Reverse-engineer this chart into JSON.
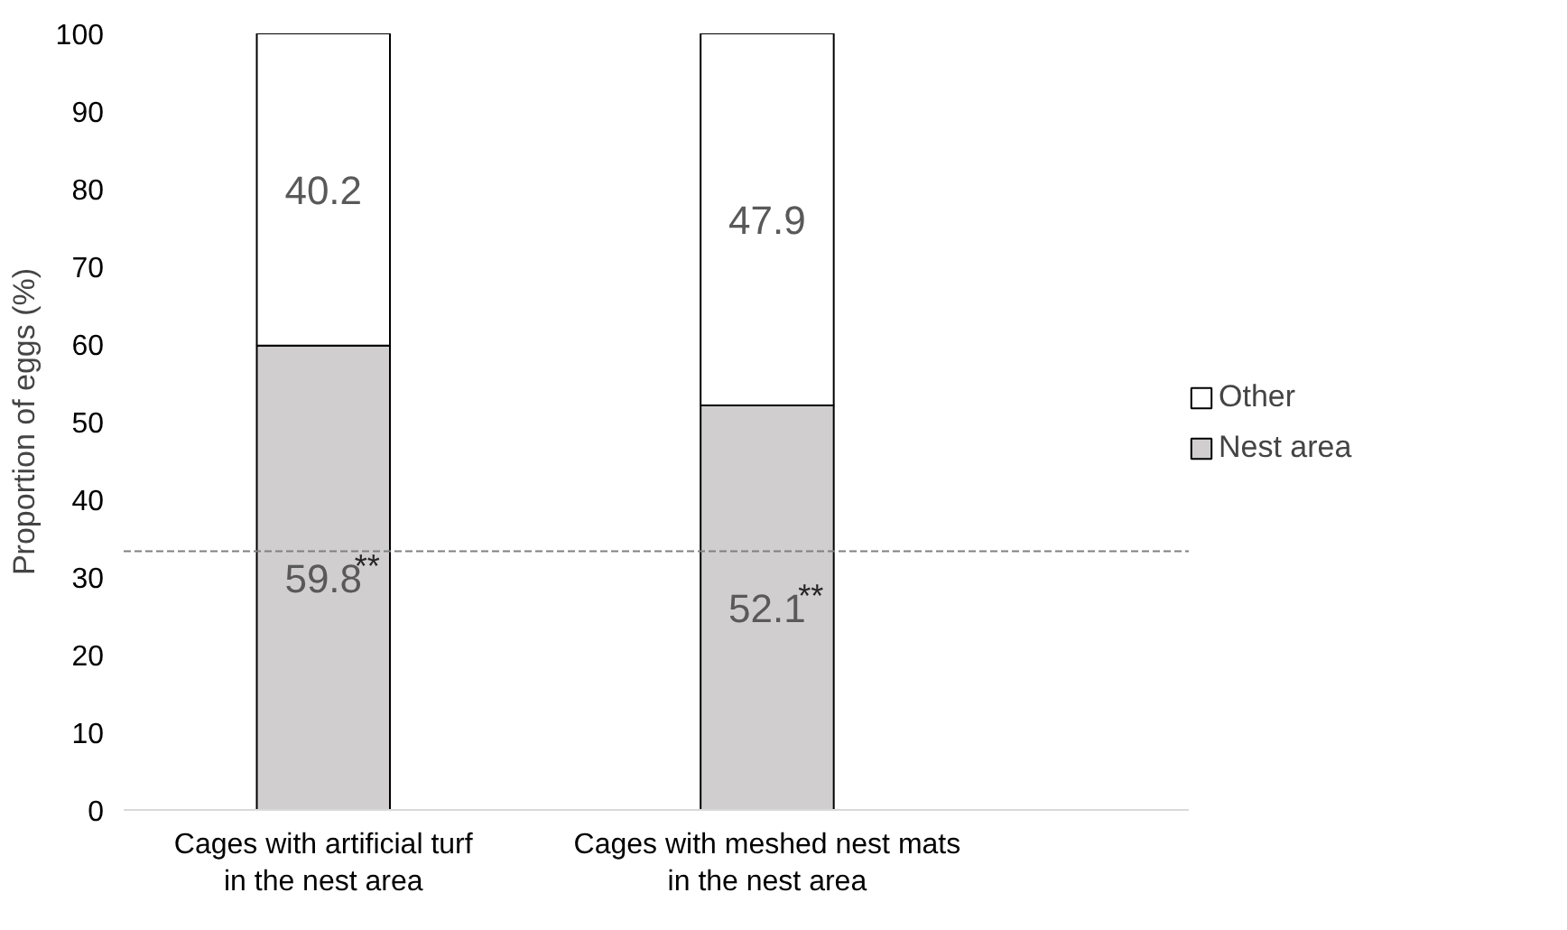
{
  "chart_data": {
    "type": "bar",
    "stacked": true,
    "ylabel": "Proportion of eggs (%)",
    "categories": [
      "Cages with artificial turf\nin the nest area",
      "Cages with meshed nest mats\nin the nest area"
    ],
    "series": [
      {
        "name": "Nest area",
        "color": "#d0cece",
        "values": [
          59.8,
          52.1
        ]
      },
      {
        "name": "Other",
        "color": "#ffffff",
        "values": [
          40.2,
          47.9
        ]
      }
    ],
    "data_labels": true,
    "ylim": [
      0,
      100
    ],
    "yticks": [
      0,
      10,
      20,
      30,
      40,
      50,
      60,
      70,
      80,
      90,
      100
    ],
    "ref_lines": [
      {
        "axis": "y",
        "value": 33.3,
        "color": "#808080",
        "line_style": "dashed"
      }
    ],
    "annotations": [
      "**",
      "**"
    ],
    "legend": "right",
    "grid": false
  }
}
